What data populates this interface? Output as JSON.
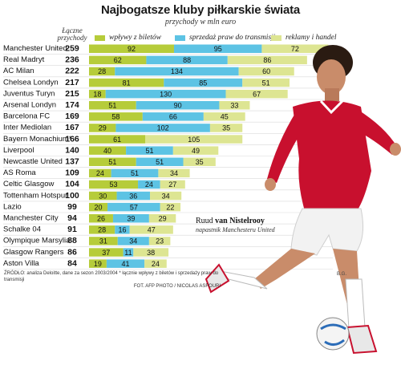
{
  "header": {
    "title": "Najbogatsze kluby piłkarskie świata",
    "subtitle": "przychody w mln euro",
    "total_header": "Łączne przychody"
  },
  "colors": {
    "tickets": "#b6cc3a",
    "tv": "#5dc3e4",
    "ads": "#dde592",
    "highlight_total": "#d2232a"
  },
  "chart_data": {
    "type": "bar",
    "stacked": true,
    "orientation": "horizontal",
    "title": "Najbogatsze kluby piłkarskie świata",
    "subtitle": "przychody w mln euro",
    "categories": [
      "Manchester United",
      "Real Madryt",
      "AC Milan",
      "Chelsea Londyn",
      "Juventus Turyn",
      "Arsenal Londyn",
      "Barcelona FC",
      "Inter Mediolan",
      "Bayern Monachium*",
      "Liverpool",
      "Newcastle United",
      "AS Roma",
      "Celtic Glasgow",
      "Tottenham Hotspur",
      "Lazio",
      "Manchester City",
      "Schalke 04",
      "Olympique Marsylia",
      "Glasgow Rangers",
      "Aston Villa"
    ],
    "totals": [
      259,
      236,
      222,
      217,
      215,
      174,
      169,
      167,
      166,
      140,
      137,
      109,
      104,
      100,
      99,
      94,
      91,
      88,
      86,
      84
    ],
    "series": [
      {
        "name": "wpływy z biletów",
        "values": [
          92,
          62,
          28,
          81,
          18,
          51,
          58,
          29,
          61,
          40,
          51,
          24,
          53,
          30,
          20,
          26,
          28,
          31,
          37,
          19
        ]
      },
      {
        "name": "sprzedaż praw do transmisji",
        "values": [
          95,
          88,
          134,
          85,
          130,
          90,
          66,
          102,
          null,
          51,
          51,
          51,
          24,
          36,
          57,
          39,
          16,
          34,
          11,
          41
        ]
      },
      {
        "name": "reklamy i handel",
        "values": [
          72,
          86,
          60,
          51,
          67,
          33,
          45,
          35,
          105,
          49,
          35,
          34,
          27,
          34,
          22,
          29,
          47,
          23,
          38,
          24
        ]
      }
    ],
    "legend": "top"
  },
  "source": {
    "text": "ŹRÓDŁO: analiza Deloitte, dane za sezon 2003/2004 * łącznie wpływy z biletów i sprzedaży praw do transmisji",
    "photo": "FOT. AFP PHOTO / NICOLAS ASFOURI",
    "credit": "B.G."
  },
  "photo_caption": {
    "name_regular": "Ruud ",
    "name_bold": "van Nistelrooy",
    "description": "napastnik Manchesteru United"
  }
}
